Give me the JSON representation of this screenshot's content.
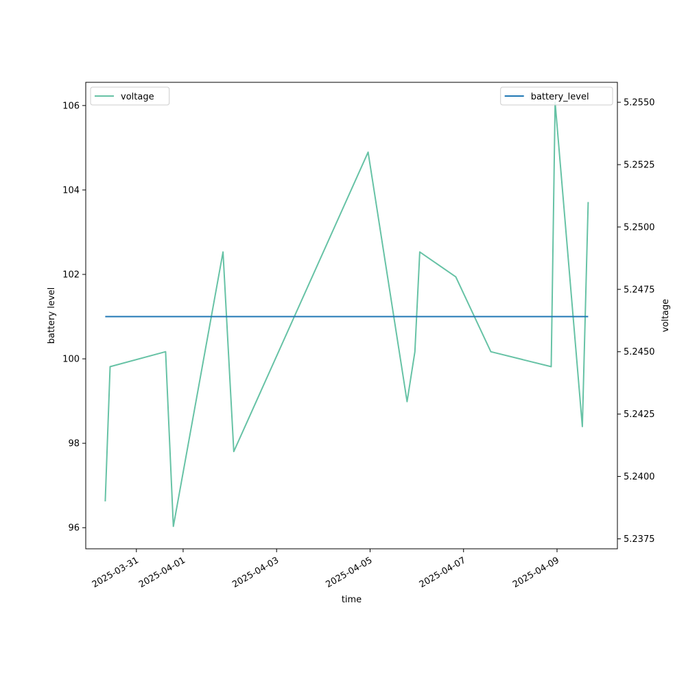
{
  "chart_data": {
    "type": "line",
    "title": "",
    "xlabel": "time",
    "ylabel_left": "battery level",
    "ylabel_right": "voltage",
    "x_ticks": [
      "2025-03-31",
      "2025-04-01",
      "2025-04-03",
      "2025-04-05",
      "2025-04-07",
      "2025-04-09"
    ],
    "x_tick_dates": [
      "2025-03-31",
      "2025-04-01",
      "2025-04-03",
      "2025-04-05",
      "2025-04-07",
      "2025-04-09"
    ],
    "xlim": [
      "2025-03-29T22:00",
      "2025-04-10T07:00"
    ],
    "y_left_ticks": [
      96,
      98,
      100,
      102,
      104,
      106
    ],
    "y_left_lim": [
      95.5,
      106.55
    ],
    "y_right_ticks": [
      "5.2375",
      "5.2400",
      "5.2425",
      "5.2450",
      "5.2475",
      "5.2500",
      "5.2525",
      "5.2550"
    ],
    "y_right_lim": [
      5.2371,
      5.2558
    ],
    "series": [
      {
        "name": "battery_level",
        "axis": "left",
        "color": "#1f77b4",
        "points": [
          {
            "t": "2025-03-30T08:00",
            "v": 101
          },
          {
            "t": "2025-04-09T16:00",
            "v": 101
          }
        ]
      },
      {
        "name": "voltage",
        "axis": "right",
        "color": "#66c2a5",
        "points": [
          {
            "t": "2025-03-30T08:00",
            "v": 5.239
          },
          {
            "t": "2025-03-30T10:30",
            "v": 5.2444
          },
          {
            "t": "2025-03-31T15:00",
            "v": 5.245
          },
          {
            "t": "2025-03-31T19:00",
            "v": 5.238
          },
          {
            "t": "2025-04-01T20:30",
            "v": 5.249
          },
          {
            "t": "2025-04-02T02:00",
            "v": 5.241
          },
          {
            "t": "2025-04-04T23:00",
            "v": 5.253
          },
          {
            "t": "2025-04-05T19:00",
            "v": 5.243
          },
          {
            "t": "2025-04-05T23:00",
            "v": 5.245
          },
          {
            "t": "2025-04-06T01:30",
            "v": 5.249
          },
          {
            "t": "2025-04-06T20:00",
            "v": 5.248
          },
          {
            "t": "2025-04-07T14:00",
            "v": 5.245
          },
          {
            "t": "2025-04-08T21:00",
            "v": 5.2444
          },
          {
            "t": "2025-04-08T23:00",
            "v": 5.255
          },
          {
            "t": "2025-04-09T13:00",
            "v": 5.242
          },
          {
            "t": "2025-04-09T16:00",
            "v": 5.251
          }
        ]
      }
    ],
    "legends": [
      {
        "label": "voltage",
        "placement": "upper-left"
      },
      {
        "label": "battery_level",
        "placement": "upper-right"
      }
    ]
  }
}
